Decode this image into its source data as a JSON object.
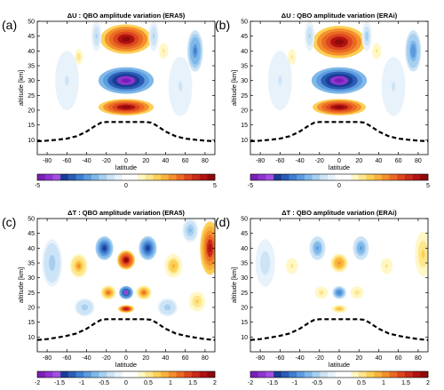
{
  "chart_data": [
    {
      "type": "heatmap",
      "panel_label": "(a)",
      "title": "ΔU : QBO amplitude variation (ERA5)",
      "xlabel": "latitude",
      "ylabel": "altitude [km]",
      "xlim": [
        -90,
        90
      ],
      "ylim": [
        5,
        50
      ],
      "xticks": [
        -80,
        -60,
        -40,
        -20,
        0,
        20,
        40,
        60,
        80
      ],
      "yticks": [
        10,
        15,
        20,
        25,
        30,
        35,
        40,
        45,
        50
      ],
      "colorbar": {
        "range": [
          -5,
          5
        ],
        "ticks": [
          -5,
          0,
          5
        ]
      },
      "contour_features": [
        {
          "lat": 0,
          "alt": 30,
          "value": -5,
          "width_deg": 28,
          "height_km": 4.5
        },
        {
          "lat": 0,
          "alt": 44,
          "value": 5,
          "width_deg": 26,
          "height_km": 5
        },
        {
          "lat": 0,
          "alt": 21,
          "value": 5,
          "width_deg": 28,
          "height_km": 2.8
        },
        {
          "lat": 70,
          "alt": 40,
          "value": -2.6,
          "width_deg": 8,
          "height_km": 7
        },
        {
          "lat": -48,
          "alt": 38,
          "value": 1.3,
          "width_deg": 6,
          "height_km": 4
        },
        {
          "lat": 38,
          "alt": 40,
          "value": 1.2,
          "width_deg": 7,
          "height_km": 4
        },
        {
          "lat": -30,
          "alt": 45,
          "value": -1.2,
          "width_deg": 5,
          "height_km": 5
        },
        {
          "lat": 28,
          "alt": 45,
          "value": -1.2,
          "width_deg": 5,
          "height_km": 5
        },
        {
          "lat": -60,
          "alt": 30,
          "value": -0.7,
          "width_deg": 12,
          "height_km": 10
        },
        {
          "lat": 55,
          "alt": 28,
          "value": -0.7,
          "width_deg": 12,
          "height_km": 10
        }
      ],
      "tropopause": {
        "lat": [
          -90,
          -80,
          -70,
          -60,
          -50,
          -40,
          -30,
          -25,
          -20,
          20,
          25,
          30,
          40,
          50,
          60,
          70,
          80,
          90
        ],
        "alt": [
          9.5,
          9.7,
          10.0,
          10.4,
          11.2,
          12.8,
          15.0,
          15.8,
          16.0,
          16.0,
          15.8,
          15.0,
          12.8,
          11.2,
          10.4,
          10.0,
          9.7,
          9.5
        ]
      }
    },
    {
      "type": "heatmap",
      "panel_label": "(b)",
      "title": "ΔU : QBO amplitude variation (ERAi)",
      "xlabel": "latitude",
      "ylabel": "altitude [km]",
      "xlim": [
        -90,
        90
      ],
      "ylim": [
        5,
        50
      ],
      "xticks": [
        -80,
        -60,
        -40,
        -20,
        0,
        20,
        40,
        60,
        80
      ],
      "yticks": [
        10,
        15,
        20,
        25,
        30,
        35,
        40,
        45,
        50
      ],
      "colorbar": {
        "range": [
          -5,
          5
        ],
        "ticks": [
          -5,
          0,
          5
        ]
      },
      "contour_features": [
        {
          "lat": 0,
          "alt": 30,
          "value": -5,
          "width_deg": 28,
          "height_km": 4.5
        },
        {
          "lat": 0,
          "alt": 43,
          "value": 5,
          "width_deg": 27,
          "height_km": 5.5
        },
        {
          "lat": 0,
          "alt": 21,
          "value": 5,
          "width_deg": 27,
          "height_km": 2.8
        },
        {
          "lat": 75,
          "alt": 40,
          "value": -2.4,
          "width_deg": 8,
          "height_km": 7
        },
        {
          "lat": -48,
          "alt": 38,
          "value": 1.2,
          "width_deg": 6,
          "height_km": 4
        },
        {
          "lat": 38,
          "alt": 40,
          "value": 1.2,
          "width_deg": 7,
          "height_km": 4
        },
        {
          "lat": -30,
          "alt": 45,
          "value": -1.2,
          "width_deg": 5,
          "height_km": 5
        },
        {
          "lat": 28,
          "alt": 45,
          "value": -1.3,
          "width_deg": 5,
          "height_km": 5
        },
        {
          "lat": -60,
          "alt": 30,
          "value": -0.7,
          "width_deg": 12,
          "height_km": 10
        },
        {
          "lat": 55,
          "alt": 28,
          "value": -0.7,
          "width_deg": 12,
          "height_km": 10
        }
      ],
      "tropopause": {
        "lat": [
          -90,
          -80,
          -70,
          -60,
          -50,
          -40,
          -30,
          -25,
          -20,
          20,
          25,
          30,
          40,
          50,
          60,
          70,
          80,
          90
        ],
        "alt": [
          9.5,
          9.7,
          10.0,
          10.4,
          11.2,
          12.8,
          15.0,
          15.8,
          16.0,
          16.0,
          15.8,
          15.0,
          12.8,
          11.2,
          10.4,
          10.0,
          9.7,
          9.5
        ]
      }
    },
    {
      "type": "heatmap",
      "panel_label": "(c)",
      "title": "ΔT : QBO amplitude variation (ERA5)",
      "xlabel": "latitude",
      "ylabel": "altitude [km]",
      "xlim": [
        -90,
        90
      ],
      "ylim": [
        5,
        50
      ],
      "xticks": [
        -80,
        -60,
        -40,
        -20,
        0,
        20,
        40,
        60,
        80
      ],
      "yticks": [
        10,
        15,
        20,
        25,
        30,
        35,
        40,
        45,
        50
      ],
      "colorbar": {
        "range": [
          -2,
          2
        ],
        "ticks": [
          -2,
          -1.5,
          -1,
          -0.5,
          0,
          0.5,
          1,
          1.5,
          2
        ]
      },
      "contour_features": [
        {
          "lat": 0,
          "alt": 36,
          "value": 2,
          "width_deg": 9,
          "height_km": 3.2
        },
        {
          "lat": 0,
          "alt": 25,
          "value": -1.8,
          "width_deg": 7,
          "height_km": 2.2
        },
        {
          "lat": 0,
          "alt": 19.5,
          "value": 1.9,
          "width_deg": 8,
          "height_km": 1.3
        },
        {
          "lat": -22,
          "alt": 40,
          "value": -1.5,
          "width_deg": 9,
          "height_km": 4
        },
        {
          "lat": 22,
          "alt": 40,
          "value": -1.5,
          "width_deg": 9,
          "height_km": 4
        },
        {
          "lat": -18,
          "alt": 25,
          "value": 1.2,
          "width_deg": 8,
          "height_km": 2.5
        },
        {
          "lat": 18,
          "alt": 25,
          "value": 1.2,
          "width_deg": 8,
          "height_km": 2.5
        },
        {
          "lat": -48,
          "alt": 34,
          "value": 1.0,
          "width_deg": 9,
          "height_km": 4
        },
        {
          "lat": 48,
          "alt": 34,
          "value": 0.9,
          "width_deg": 9,
          "height_km": 4
        },
        {
          "lat": -42,
          "alt": 20,
          "value": -0.6,
          "width_deg": 10,
          "height_km": 3
        },
        {
          "lat": 42,
          "alt": 20,
          "value": -0.6,
          "width_deg": 10,
          "height_km": 3
        },
        {
          "lat": 85,
          "alt": 40,
          "value": 1.8,
          "width_deg": 10,
          "height_km": 9
        },
        {
          "lat": 72,
          "alt": 22,
          "value": 0.7,
          "width_deg": 10,
          "height_km": 4
        },
        {
          "lat": -75,
          "alt": 35,
          "value": -0.6,
          "width_deg": 10,
          "height_km": 8
        },
        {
          "lat": 65,
          "alt": 46,
          "value": -0.7,
          "width_deg": 8,
          "height_km": 4
        }
      ],
      "tropopause": {
        "lat": [
          -90,
          -80,
          -70,
          -60,
          -50,
          -40,
          -30,
          -25,
          -20,
          20,
          25,
          30,
          40,
          50,
          60,
          70,
          80,
          90
        ],
        "alt": [
          9.0,
          9.3,
          9.8,
          10.4,
          11.2,
          12.8,
          15.0,
          15.8,
          16.0,
          16.0,
          15.8,
          15.0,
          12.8,
          11.2,
          10.4,
          9.8,
          9.3,
          9.0
        ]
      }
    },
    {
      "type": "heatmap",
      "panel_label": "(d)",
      "title": "ΔT : QBO amplitude variation (ERAi)",
      "xlabel": "latitude",
      "ylabel": "altitude [km]",
      "xlim": [
        -90,
        90
      ],
      "ylim": [
        5,
        50
      ],
      "xticks": [
        -80,
        -60,
        -40,
        -20,
        0,
        20,
        40,
        60,
        80
      ],
      "yticks": [
        10,
        15,
        20,
        25,
        30,
        35,
        40,
        45,
        50
      ],
      "colorbar": {
        "range": [
          -2,
          2
        ],
        "ticks": [
          -2,
          -1.5,
          -1,
          -0.5,
          0,
          0.5,
          1,
          1.5,
          2
        ]
      },
      "contour_features": [
        {
          "lat": 0,
          "alt": 35,
          "value": 1.1,
          "width_deg": 9,
          "height_km": 3.2
        },
        {
          "lat": 0,
          "alt": 25,
          "value": -1.1,
          "width_deg": 7,
          "height_km": 2.2
        },
        {
          "lat": 0,
          "alt": 19.5,
          "value": 0.9,
          "width_deg": 8,
          "height_km": 1.4
        },
        {
          "lat": -22,
          "alt": 40,
          "value": -0.9,
          "width_deg": 8,
          "height_km": 4
        },
        {
          "lat": 22,
          "alt": 40,
          "value": -0.9,
          "width_deg": 8,
          "height_km": 4
        },
        {
          "lat": -18,
          "alt": 25,
          "value": 0.6,
          "width_deg": 8,
          "height_km": 2.5
        },
        {
          "lat": 18,
          "alt": 25,
          "value": 0.6,
          "width_deg": 8,
          "height_km": 2.5
        },
        {
          "lat": -48,
          "alt": 34,
          "value": 0.5,
          "width_deg": 9,
          "height_km": 4
        },
        {
          "lat": 48,
          "alt": 34,
          "value": 0.5,
          "width_deg": 9,
          "height_km": 4
        },
        {
          "lat": 85,
          "alt": 38,
          "value": 0.7,
          "width_deg": 10,
          "height_km": 9
        },
        {
          "lat": -75,
          "alt": 35,
          "value": -0.4,
          "width_deg": 10,
          "height_km": 8
        }
      ],
      "tropopause": {
        "lat": [
          -90,
          -80,
          -70,
          -60,
          -50,
          -40,
          -30,
          -25,
          -20,
          20,
          25,
          30,
          40,
          50,
          60,
          70,
          80,
          90
        ],
        "alt": [
          9.0,
          9.3,
          9.8,
          10.4,
          11.2,
          12.8,
          15.0,
          15.8,
          16.0,
          16.0,
          15.8,
          15.0,
          12.8,
          11.2,
          10.4,
          9.8,
          9.3,
          9.0
        ]
      }
    }
  ],
  "colormap": [
    "#7a1fb4",
    "#8f33d0",
    "#a44ee0",
    "#1a3c93",
    "#2b5cb5",
    "#3f7ecf",
    "#5b9bde",
    "#80b8e9",
    "#a6cff0",
    "#cde4f6",
    "#e8f2fb",
    "#ffffff",
    "#ffffff",
    "#fff7c6",
    "#fde68c",
    "#fcd057",
    "#f9b33a",
    "#f48f2d",
    "#ea6a24",
    "#dc461e",
    "#c92a18",
    "#b01212",
    "#8e0a0a"
  ]
}
